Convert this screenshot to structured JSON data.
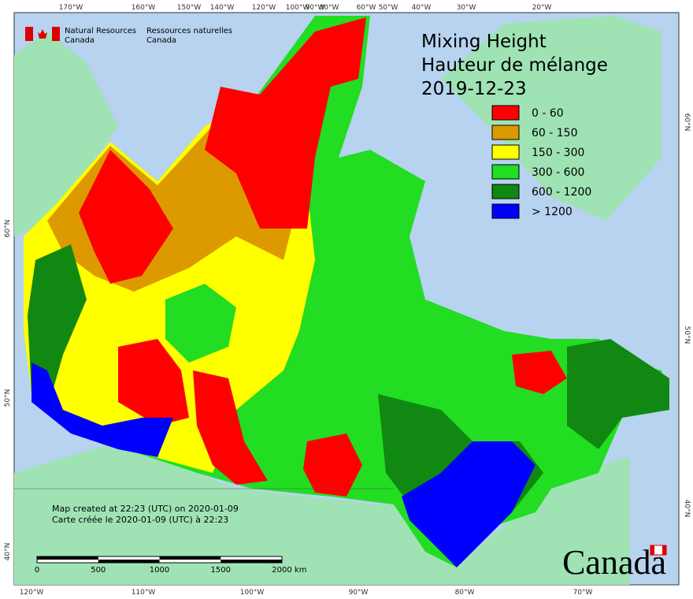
{
  "header": {
    "agency_en": [
      "Natural Resources",
      "Canada"
    ],
    "agency_fr": [
      "Ressources naturelles",
      "Canada"
    ],
    "wordmark": "Canada"
  },
  "title": [
    "Mixing Height",
    "Hauteur de mélange",
    "2019-12-23"
  ],
  "legend": [
    {
      "label": "0 - 60",
      "color": "#ff0000"
    },
    {
      "label": "60 - 150",
      "color": "#dd9900"
    },
    {
      "label": "150 - 300",
      "color": "#ffff00"
    },
    {
      "label": "300 - 600",
      "color": "#22dd22"
    },
    {
      "label": "600 - 1200",
      "color": "#118811"
    },
    {
      "label": "> 1200",
      "color": "#0000ff"
    }
  ],
  "graticule": {
    "top": [
      "170°W",
      "160°W",
      "150°W",
      "140°W",
      "120°W",
      "100°W",
      "90°W",
      "80°W",
      "60°W",
      "50°W",
      "40°W",
      "30°W",
      "20°W"
    ],
    "bottom": [
      "120°W",
      "110°W",
      "100°W",
      "90°W",
      "80°W",
      "70°W"
    ],
    "left": [
      "60°N",
      "50°N",
      "40°N"
    ],
    "right": [
      "60°N",
      "50°N",
      "40°N"
    ]
  },
  "footer": [
    "Map created at 22:23 (UTC) on 2020-01-09",
    "Carte créée le 2020-01-09 (UTC) à 22:23"
  ],
  "scale": {
    "ticks": [
      0,
      500,
      1000,
      1500,
      2000
    ],
    "unit": "km"
  }
}
